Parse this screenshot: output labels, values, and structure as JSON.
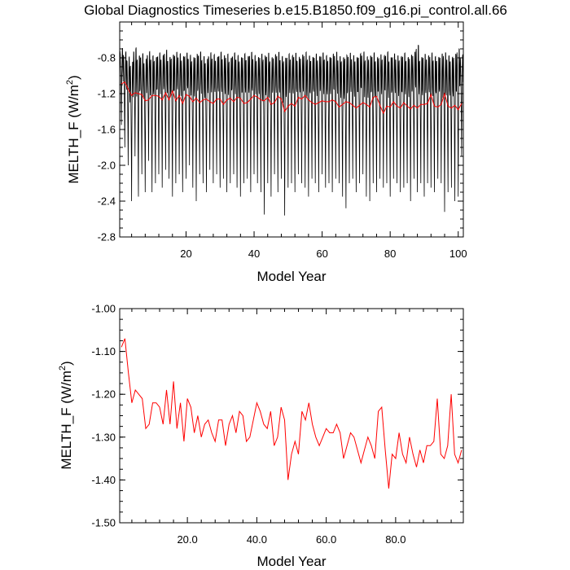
{
  "chart_data": [
    {
      "type": "line",
      "title": "Global Diagnostics Timeseries b.e15.B1850.f09_g16.pi_control.all.66",
      "xlabel": "Model Year",
      "ylabel": "MELTH_F (W/m",
      "ylabel_sup": "2",
      "ylabel_close": ")",
      "xlim": [
        0.5,
        101.5
      ],
      "ylim": [
        -2.8,
        -0.4
      ],
      "xticks": [
        20,
        40,
        60,
        80,
        100
      ],
      "xtick_labels": [
        "20",
        "40",
        "60",
        "80",
        "100"
      ],
      "yticks": [
        -2.8,
        -2.4,
        -2.0,
        -1.6,
        -1.2,
        -0.8
      ],
      "ytick_labels": [
        "-2.8",
        "-2.4",
        "-2.0",
        "-1.6",
        "-1.2",
        "-0.8"
      ],
      "grid": false,
      "series": [
        {
          "kind": "monthly",
          "color": "#000000",
          "peak_values": [
            -0.72,
            -0.75,
            -0.8,
            -0.85,
            -0.7,
            -0.78,
            -0.76,
            -0.82,
            -0.74,
            -0.78,
            -0.8,
            -0.75,
            -0.78,
            -0.72,
            -0.8,
            -0.77,
            -0.74,
            -0.76,
            -0.79,
            -0.75,
            -0.78,
            -0.8,
            -0.76,
            -0.74,
            -0.79,
            -0.82,
            -0.75,
            -0.77,
            -0.8,
            -0.74,
            -0.78,
            -0.76,
            -0.81,
            -0.75,
            -0.78,
            -0.8,
            -0.76,
            -0.79,
            -0.74,
            -0.78,
            -0.8,
            -0.76,
            -0.78,
            -0.75,
            -0.8,
            -0.77,
            -0.74,
            -0.79,
            -0.8,
            -0.76,
            -0.78,
            -0.75,
            -0.8,
            -0.77,
            -0.74,
            -0.78,
            -0.8,
            -0.76,
            -0.79,
            -0.75,
            -0.78,
            -0.8,
            -0.76,
            -0.74,
            -0.79,
            -0.8,
            -0.77,
            -0.75,
            -0.78,
            -0.8,
            -0.76,
            -0.74,
            -0.79,
            -0.78,
            -0.75,
            -0.8,
            -0.77,
            -0.78,
            -0.74,
            -0.8,
            -0.76,
            -0.78,
            -0.79,
            -0.75,
            -0.8,
            -0.77,
            -0.74,
            -0.66,
            -0.8,
            -0.76,
            -0.78,
            -0.75,
            -0.79,
            -0.8,
            -0.76,
            -0.74,
            -0.78,
            -0.8,
            -0.76,
            -0.7,
            -0.78
          ],
          "trough_values": [
            -1.55,
            -1.8,
            -2.0,
            -2.4,
            -1.9,
            -2.35,
            -2.1,
            -2.3,
            -1.95,
            -2.3,
            -2.2,
            -2.1,
            -2.25,
            -2.05,
            -2.15,
            -2.35,
            -2.2,
            -2.1,
            -2.3,
            -2.15,
            -2.0,
            -2.25,
            -2.4,
            -2.1,
            -2.2,
            -2.3,
            -2.05,
            -2.2,
            -2.1,
            -2.25,
            -2.15,
            -2.3,
            -2.2,
            -2.1,
            -2.25,
            -2.35,
            -2.2,
            -2.15,
            -2.3,
            -2.1,
            -2.2,
            -2.3,
            -2.55,
            -2.2,
            -2.35,
            -2.1,
            -2.3,
            -2.15,
            -2.56,
            -2.25,
            -2.2,
            -2.3,
            -2.1,
            -2.2,
            -2.25,
            -2.35,
            -2.15,
            -2.2,
            -2.3,
            -2.1,
            -2.25,
            -2.2,
            -2.3,
            -2.15,
            -2.2,
            -2.35,
            -2.48,
            -2.2,
            -2.15,
            -2.3,
            -2.2,
            -2.1,
            -2.35,
            -2.4,
            -2.2,
            -2.3,
            -2.15,
            -2.25,
            -2.2,
            -2.35,
            -2.15,
            -2.2,
            -2.3,
            -2.25,
            -2.2,
            -2.4,
            -2.15,
            -2.3,
            -2.2,
            -2.35,
            -2.2,
            -2.25,
            -2.3,
            -2.15,
            -2.2,
            -2.52,
            -2.3,
            -2.25,
            -2.4,
            -2.35,
            -1.9
          ]
        },
        {
          "kind": "annual",
          "color": "#ff0000",
          "values_ref": "annual"
        }
      ]
    },
    {
      "type": "line",
      "title": "",
      "xlabel": "Model Year",
      "ylabel": "MELTH_F (W/m",
      "ylabel_sup": "2",
      "ylabel_close": ")",
      "xlim": [
        0.5,
        99.5
      ],
      "ylim": [
        -1.5,
        -1.0
      ],
      "xticks": [
        20,
        40,
        60,
        80
      ],
      "xtick_labels": [
        "20.0",
        "40.0",
        "60.0",
        "80.0"
      ],
      "yticks": [
        -1.5,
        -1.4,
        -1.3,
        -1.2,
        -1.1,
        -1.0
      ],
      "ytick_labels": [
        "-1.50",
        "-1.40",
        "-1.30",
        "-1.20",
        "-1.10",
        "-1.00"
      ],
      "grid": false,
      "series": [
        {
          "kind": "annual",
          "color": "#ff0000",
          "values_ref": "annual"
        }
      ]
    }
  ],
  "annual": {
    "x": [
      1,
      2,
      3,
      4,
      5,
      6,
      7,
      8,
      9,
      10,
      11,
      12,
      13,
      14,
      15,
      16,
      17,
      18,
      19,
      20,
      21,
      22,
      23,
      24,
      25,
      26,
      27,
      28,
      29,
      30,
      31,
      32,
      33,
      34,
      35,
      36,
      37,
      38,
      39,
      40,
      41,
      42,
      43,
      44,
      45,
      46,
      47,
      48,
      49,
      50,
      51,
      52,
      53,
      54,
      55,
      56,
      57,
      58,
      59,
      60,
      61,
      62,
      63,
      64,
      65,
      66,
      67,
      68,
      69,
      70,
      71,
      72,
      73,
      74,
      75,
      76,
      77,
      78,
      79,
      80,
      81,
      82,
      83,
      84,
      85,
      86,
      87,
      88,
      89,
      90,
      91,
      92,
      93,
      94,
      95,
      96,
      97,
      98,
      99,
      100,
      101
    ],
    "values": [
      -1.09,
      -1.07,
      -1.15,
      -1.22,
      -1.19,
      -1.2,
      -1.21,
      -1.28,
      -1.27,
      -1.22,
      -1.22,
      -1.23,
      -1.27,
      -1.19,
      -1.27,
      -1.17,
      -1.28,
      -1.22,
      -1.31,
      -1.21,
      -1.23,
      -1.29,
      -1.25,
      -1.3,
      -1.27,
      -1.26,
      -1.29,
      -1.31,
      -1.26,
      -1.26,
      -1.32,
      -1.27,
      -1.25,
      -1.29,
      -1.24,
      -1.25,
      -1.31,
      -1.3,
      -1.26,
      -1.22,
      -1.24,
      -1.27,
      -1.28,
      -1.24,
      -1.32,
      -1.3,
      -1.23,
      -1.26,
      -1.4,
      -1.34,
      -1.31,
      -1.34,
      -1.24,
      -1.26,
      -1.22,
      -1.27,
      -1.3,
      -1.32,
      -1.3,
      -1.28,
      -1.29,
      -1.29,
      -1.27,
      -1.29,
      -1.35,
      -1.32,
      -1.29,
      -1.3,
      -1.33,
      -1.36,
      -1.33,
      -1.3,
      -1.32,
      -1.35,
      -1.24,
      -1.23,
      -1.33,
      -1.42,
      -1.34,
      -1.35,
      -1.29,
      -1.34,
      -1.36,
      -1.3,
      -1.34,
      -1.37,
      -1.33,
      -1.36,
      -1.32,
      -1.32,
      -1.31,
      -1.21,
      -1.34,
      -1.35,
      -1.32,
      -1.2,
      -1.34,
      -1.36,
      -1.33,
      -1.38,
      -1.31
    ]
  },
  "colors": {
    "monthly": "#000000",
    "annual": "#ff0000",
    "axes": "#000000"
  }
}
